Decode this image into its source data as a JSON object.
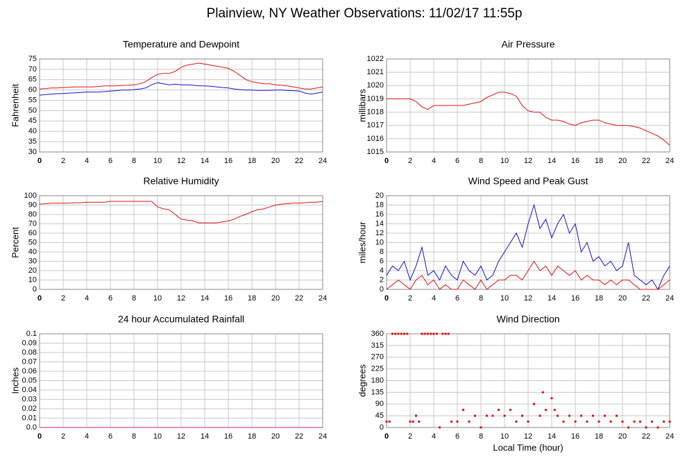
{
  "page_title": "Plainview, NY Weather Observations: 11/02/17 11:55p",
  "chart_data": [
    {
      "type": "line",
      "title": "Temperature and Dewpoint",
      "ylabel": "Fahrenheit",
      "x": [
        0,
        0.5,
        1,
        1.5,
        2,
        2.5,
        3,
        3.5,
        4,
        4.5,
        5,
        5.5,
        6,
        6.5,
        7,
        7.5,
        8,
        8.5,
        9,
        9.5,
        10,
        10.5,
        11,
        11.5,
        12,
        12.5,
        13,
        13.5,
        14,
        14.5,
        15,
        15.5,
        16,
        16.5,
        17,
        17.5,
        18,
        18.5,
        19,
        19.5,
        20,
        20.5,
        21,
        21.5,
        22,
        22.5,
        23,
        23.5,
        24
      ],
      "series": [
        {
          "color": "#e01010",
          "values": [
            60.5,
            60.7,
            61,
            61,
            61.2,
            61.3,
            61.5,
            61.5,
            61.5,
            61.5,
            61.7,
            62,
            62,
            62,
            62.2,
            62.3,
            62.5,
            63,
            64,
            66,
            67.5,
            68,
            68,
            69,
            71,
            72,
            72.5,
            73,
            72.5,
            72,
            71.5,
            71,
            70.5,
            69,
            67,
            65,
            64,
            63.5,
            63,
            63,
            62.5,
            62.3,
            62,
            61.5,
            61,
            60.5,
            60.5,
            61,
            61.5
          ]
        },
        {
          "color": "#1010d0",
          "values": [
            57.5,
            57.8,
            58,
            58.2,
            58.3,
            58.5,
            58.6,
            58.8,
            59,
            59,
            59,
            59.2,
            59.5,
            59.7,
            60,
            60,
            60.2,
            60.5,
            61,
            62.5,
            63.5,
            63,
            62.5,
            62.8,
            62.5,
            62.5,
            62.3,
            62,
            62,
            61.8,
            61.5,
            61.2,
            61,
            60.5,
            60.2,
            60,
            60,
            59.8,
            59.8,
            59.8,
            60,
            60,
            59.8,
            59.7,
            59.5,
            58.5,
            58,
            58.5,
            59
          ]
        }
      ],
      "xlim": [
        0,
        24
      ],
      "xticks": [
        0,
        2,
        4,
        6,
        8,
        10,
        12,
        14,
        16,
        18,
        20,
        22,
        24
      ],
      "ylim": [
        30,
        75
      ],
      "yticks": [
        30,
        35,
        40,
        45,
        50,
        55,
        60,
        65,
        70,
        75
      ],
      "grid": true
    },
    {
      "type": "line",
      "title": "Air Pressure",
      "ylabel": "millibars",
      "x": [
        0,
        0.5,
        1,
        1.5,
        2,
        2.5,
        3,
        3.5,
        4,
        4.5,
        5,
        5.5,
        6,
        6.5,
        7,
        7.5,
        8,
        8.5,
        9,
        9.5,
        10,
        10.5,
        11,
        11.5,
        12,
        12.5,
        13,
        13.5,
        14,
        14.5,
        15,
        15.5,
        16,
        16.5,
        17,
        17.5,
        18,
        18.5,
        19,
        19.5,
        20,
        20.5,
        21,
        21.5,
        22,
        22.5,
        23,
        23.5,
        24
      ],
      "series": [
        {
          "color": "#e01010",
          "values": [
            1019,
            1019,
            1019,
            1019,
            1019,
            1018.8,
            1018.4,
            1018.2,
            1018.5,
            1018.5,
            1018.5,
            1018.5,
            1018.5,
            1018.5,
            1018.6,
            1018.7,
            1018.8,
            1019.1,
            1019.3,
            1019.5,
            1019.5,
            1019.4,
            1019.2,
            1018.5,
            1018.1,
            1018,
            1018,
            1017.6,
            1017.4,
            1017.4,
            1017.3,
            1017.1,
            1017,
            1017.2,
            1017.3,
            1017.4,
            1017.4,
            1017.2,
            1017.1,
            1017,
            1017,
            1017,
            1016.9,
            1016.8,
            1016.6,
            1016.4,
            1016.2,
            1015.9,
            1015.5
          ]
        }
      ],
      "xlim": [
        0,
        24
      ],
      "xticks": [
        0,
        2,
        4,
        6,
        8,
        10,
        12,
        14,
        16,
        18,
        20,
        22,
        24
      ],
      "ylim": [
        1015,
        1022
      ],
      "yticks": [
        1015,
        1016,
        1017,
        1018,
        1019,
        1020,
        1021,
        1022
      ],
      "grid": true
    },
    {
      "type": "line",
      "title": "Relative Humidity",
      "ylabel": "Percent",
      "x": [
        0,
        0.5,
        1,
        1.5,
        2,
        2.5,
        3,
        3.5,
        4,
        4.5,
        5,
        5.5,
        6,
        6.5,
        7,
        7.5,
        8,
        8.5,
        9,
        9.5,
        10,
        10.5,
        11,
        11.5,
        12,
        12.5,
        13,
        13.5,
        14,
        14.5,
        15,
        15.5,
        16,
        16.5,
        17,
        17.5,
        18,
        18.5,
        19,
        19.5,
        20,
        20.5,
        21,
        21.5,
        22,
        22.5,
        23,
        23.5,
        24
      ],
      "series": [
        {
          "color": "#e01010",
          "values": [
            91,
            91.5,
            92,
            92,
            92,
            92,
            92.5,
            92.5,
            93,
            93,
            93,
            93,
            94,
            94,
            94,
            94,
            94,
            94,
            94,
            94,
            88,
            86,
            85,
            80,
            75,
            74,
            73,
            71,
            71,
            71,
            71,
            72,
            73,
            75,
            78,
            80,
            83,
            85,
            86,
            88,
            90,
            91,
            91.5,
            92,
            92,
            92.5,
            93,
            93,
            94
          ]
        }
      ],
      "xlim": [
        0,
        24
      ],
      "xticks": [
        0,
        2,
        4,
        6,
        8,
        10,
        12,
        14,
        16,
        18,
        20,
        22,
        24
      ],
      "ylim": [
        0,
        100
      ],
      "yticks": [
        0,
        10,
        20,
        30,
        40,
        50,
        60,
        70,
        80,
        90,
        100
      ],
      "grid": true
    },
    {
      "type": "line",
      "title": "Wind Speed and Peak Gust",
      "ylabel": "miles/hour",
      "x": [
        0,
        0.5,
        1,
        1.5,
        2,
        2.5,
        3,
        3.5,
        4,
        4.5,
        5,
        5.5,
        6,
        6.5,
        7,
        7.5,
        8,
        8.5,
        9,
        9.5,
        10,
        10.5,
        11,
        11.5,
        12,
        12.5,
        13,
        13.5,
        14,
        14.5,
        15,
        15.5,
        16,
        16.5,
        17,
        17.5,
        18,
        18.5,
        19,
        19.5,
        20,
        20.5,
        21,
        21.5,
        22,
        22.5,
        23,
        23.5,
        24
      ],
      "series": [
        {
          "color": "#1010d0",
          "values": [
            3,
            5,
            4,
            6,
            2,
            5,
            9,
            3,
            4,
            2,
            5,
            3,
            2,
            6,
            4,
            3,
            5,
            2,
            3,
            6,
            8,
            10,
            12,
            9,
            14,
            18,
            13,
            15,
            11,
            14,
            16,
            12,
            14,
            8,
            10,
            6,
            7,
            5,
            6,
            4,
            5,
            10,
            3,
            2,
            1,
            2,
            0,
            3,
            5
          ]
        },
        {
          "color": "#e01010",
          "values": [
            0,
            1,
            2,
            1,
            0,
            2,
            3,
            1,
            2,
            0,
            1,
            0,
            0,
            2,
            1,
            0,
            2,
            0,
            1,
            2,
            2,
            3,
            3,
            2,
            4,
            6,
            4,
            5,
            3,
            5,
            4,
            3,
            4,
            2,
            3,
            2,
            2,
            1,
            2,
            1,
            2,
            2,
            1,
            0,
            0,
            0,
            0,
            1,
            2
          ]
        }
      ],
      "xlim": [
        0,
        24
      ],
      "xticks": [
        0,
        2,
        4,
        6,
        8,
        10,
        12,
        14,
        16,
        18,
        20,
        22,
        24
      ],
      "ylim": [
        0,
        20
      ],
      "yticks": [
        0,
        2,
        4,
        6,
        8,
        10,
        12,
        14,
        16,
        18,
        20
      ],
      "grid": true
    },
    {
      "type": "line",
      "title": "24 hour Accumulated Rainfall",
      "ylabel": "Inches",
      "x": [
        0,
        24
      ],
      "series": [
        {
          "color": "#d0208a",
          "values": [
            0,
            0
          ]
        }
      ],
      "xlim": [
        0,
        24
      ],
      "xticks": [
        0,
        2,
        4,
        6,
        8,
        10,
        12,
        14,
        16,
        18,
        20,
        22,
        24
      ],
      "ylim": [
        0,
        0.1
      ],
      "yticks": [
        {
          "value": 0,
          "label": "0.0"
        },
        0.01,
        0.02,
        0.03,
        0.04,
        0.05,
        0.06,
        0.07,
        0.08,
        0.09,
        0.1
      ],
      "grid": true
    },
    {
      "type": "scatter",
      "title": "Wind Direction",
      "ylabel": "degrees",
      "xlabel": "Local Time (hour)",
      "x": [
        0,
        0.25,
        0.5,
        0.75,
        1,
        1.25,
        1.5,
        1.75,
        2,
        2.25,
        2.5,
        2.75,
        3,
        3.25,
        3.5,
        3.75,
        4,
        4.25,
        4.5,
        4.75,
        5,
        5.25,
        5.5,
        6,
        6.5,
        7,
        7.5,
        8,
        8.5,
        9,
        9.5,
        10,
        10.5,
        11,
        11.5,
        12,
        12.5,
        13,
        13.25,
        13.5,
        14,
        14.25,
        14.5,
        15,
        15.5,
        16,
        16.5,
        17,
        17.5,
        18,
        18.5,
        19,
        19.5,
        20,
        20.5,
        21,
        21.5,
        22,
        22.5,
        23,
        23.5,
        24
      ],
      "values": [
        22.5,
        22.5,
        360,
        360,
        360,
        360,
        360,
        360,
        22.5,
        22.5,
        45,
        22.5,
        360,
        360,
        360,
        360,
        360,
        360,
        0,
        360,
        360,
        360,
        22.5,
        22.5,
        67.5,
        22.5,
        45,
        0,
        45,
        45,
        67.5,
        45,
        67.5,
        22.5,
        45,
        22.5,
        90,
        45,
        135,
        67.5,
        112.5,
        67.5,
        45,
        22.5,
        45,
        22.5,
        45,
        22.5,
        45,
        22.5,
        45,
        22.5,
        45,
        22.5,
        0,
        22.5,
        22.5,
        0,
        22.5,
        0,
        22.5,
        22.5
      ],
      "color": "#e01010",
      "xlim": [
        0,
        24
      ],
      "xticks": [
        0,
        2,
        4,
        6,
        8,
        10,
        12,
        14,
        16,
        18,
        20,
        22,
        24
      ],
      "ylim": [
        0,
        360
      ],
      "yticks": [
        0,
        45,
        90,
        135,
        180,
        225,
        270,
        315,
        360
      ],
      "grid": true
    }
  ]
}
